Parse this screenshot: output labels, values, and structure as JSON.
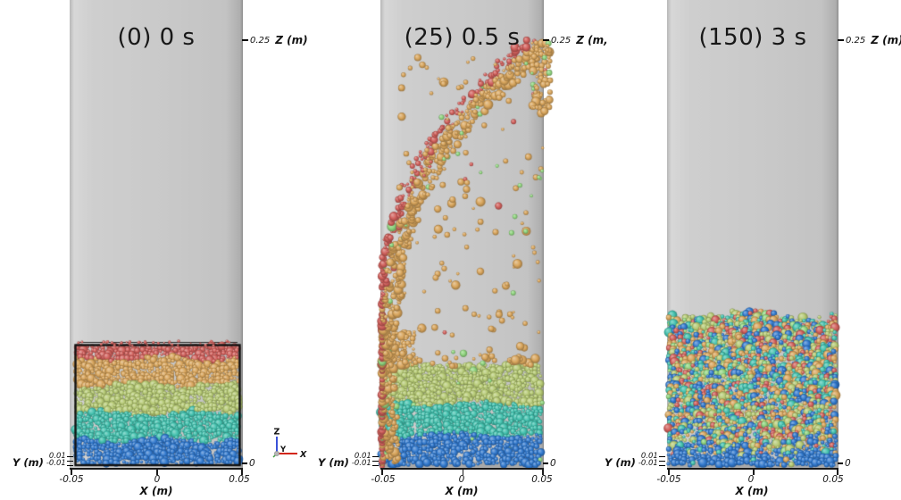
{
  "figure": {
    "background": "#ffffff",
    "column_color": "#c9c9c9"
  },
  "panels": [
    {
      "title": "(0) 0 s",
      "frame": 0,
      "time": "0 s",
      "state": "layered",
      "z_top_tick": "0.25",
      "z_axis_label": "Z (m)",
      "z_bottom_tick": "0",
      "y_axis_label": "Y (m)",
      "y_tick_top": "0.01",
      "y_tick_bottom": "-0.01",
      "x_axis_label": "X (m)",
      "x_ticks": [
        "-0.05",
        "0",
        "0.05"
      ],
      "seed": 11
    },
    {
      "title": "(25) 0.5 s",
      "frame": 25,
      "time": "0.5 s",
      "state": "fountain",
      "z_top_tick": "0.25",
      "z_axis_label": "Z (m,",
      "z_bottom_tick": "0",
      "y_axis_label": "Y (m)",
      "y_tick_top": "0.01",
      "y_tick_bottom": "-0.01",
      "x_axis_label": "X (m)",
      "x_ticks": [
        "-0.05",
        "0",
        "0.05"
      ],
      "seed": 23
    },
    {
      "title": "(150) 3 s",
      "frame": 150,
      "time": "3 s",
      "state": "mixed",
      "z_top_tick": "0.25",
      "z_axis_label": "Z (m)",
      "z_bottom_tick": "0",
      "y_axis_label": "Y (m)",
      "y_tick_top": "0.01",
      "y_tick_bottom": "-0.01",
      "x_axis_label": "X (m)",
      "x_ticks": [
        "-0.05",
        "0",
        "0.05"
      ],
      "seed": 37
    }
  ],
  "orientation_axes": {
    "z_label": "Z",
    "y_label": "Y",
    "x_label": "X",
    "z_color": "#3a52d8",
    "x_color": "#d22615",
    "y_color": "#3f9e3f",
    "origin_color": "#b5b5b5"
  },
  "particle_colors": {
    "red": "#d05f5b",
    "orange": "#d8a55c",
    "green": "#b5c973",
    "teal": "#41c0ad",
    "blue": "#3078cd",
    "light_green": "#8fd47e"
  },
  "chart_data": {
    "type": "scatter",
    "title": "Granular particle mixing simulation, frames (0) 0 s, (25) 0.5 s, (150) 3 s",
    "x_axis": {
      "label": "X (m)",
      "range": [
        -0.05,
        0.05
      ],
      "ticks": [
        -0.05,
        0,
        0.05
      ]
    },
    "z_axis": {
      "label": "Z (m)",
      "range": [
        0,
        0.25
      ],
      "ticks": [
        0,
        0.25
      ]
    },
    "y_axis": {
      "label": "Y (m)",
      "ticks": [
        0.01,
        -0.01
      ]
    },
    "frames": [
      {
        "frame": 0,
        "time_s": 0,
        "state": "initial packed bed in wireframe box, horizontally layered by color",
        "layers_top_to_bottom": [
          "red",
          "orange",
          "yellow-green",
          "teal",
          "blue"
        ],
        "bed_height_m": 0.07
      },
      {
        "frame": 25,
        "time_s": 0.5,
        "state": "red and orange layers ejected in an arc up the left wall toward the upper-right; green, teal and blue remain in the bed; sparse orange and light-green particles in flight",
        "layers_top_to_bottom": [
          "yellow-green",
          "teal",
          "blue"
        ],
        "bed_height_m": 0.06
      },
      {
        "frame": 150,
        "time_s": 3,
        "state": "fully mixed bed of all particle colors, blue-rich at the very bottom",
        "layers_top_to_bottom": [
          "mixed"
        ],
        "bed_height_m": 0.09
      }
    ]
  }
}
